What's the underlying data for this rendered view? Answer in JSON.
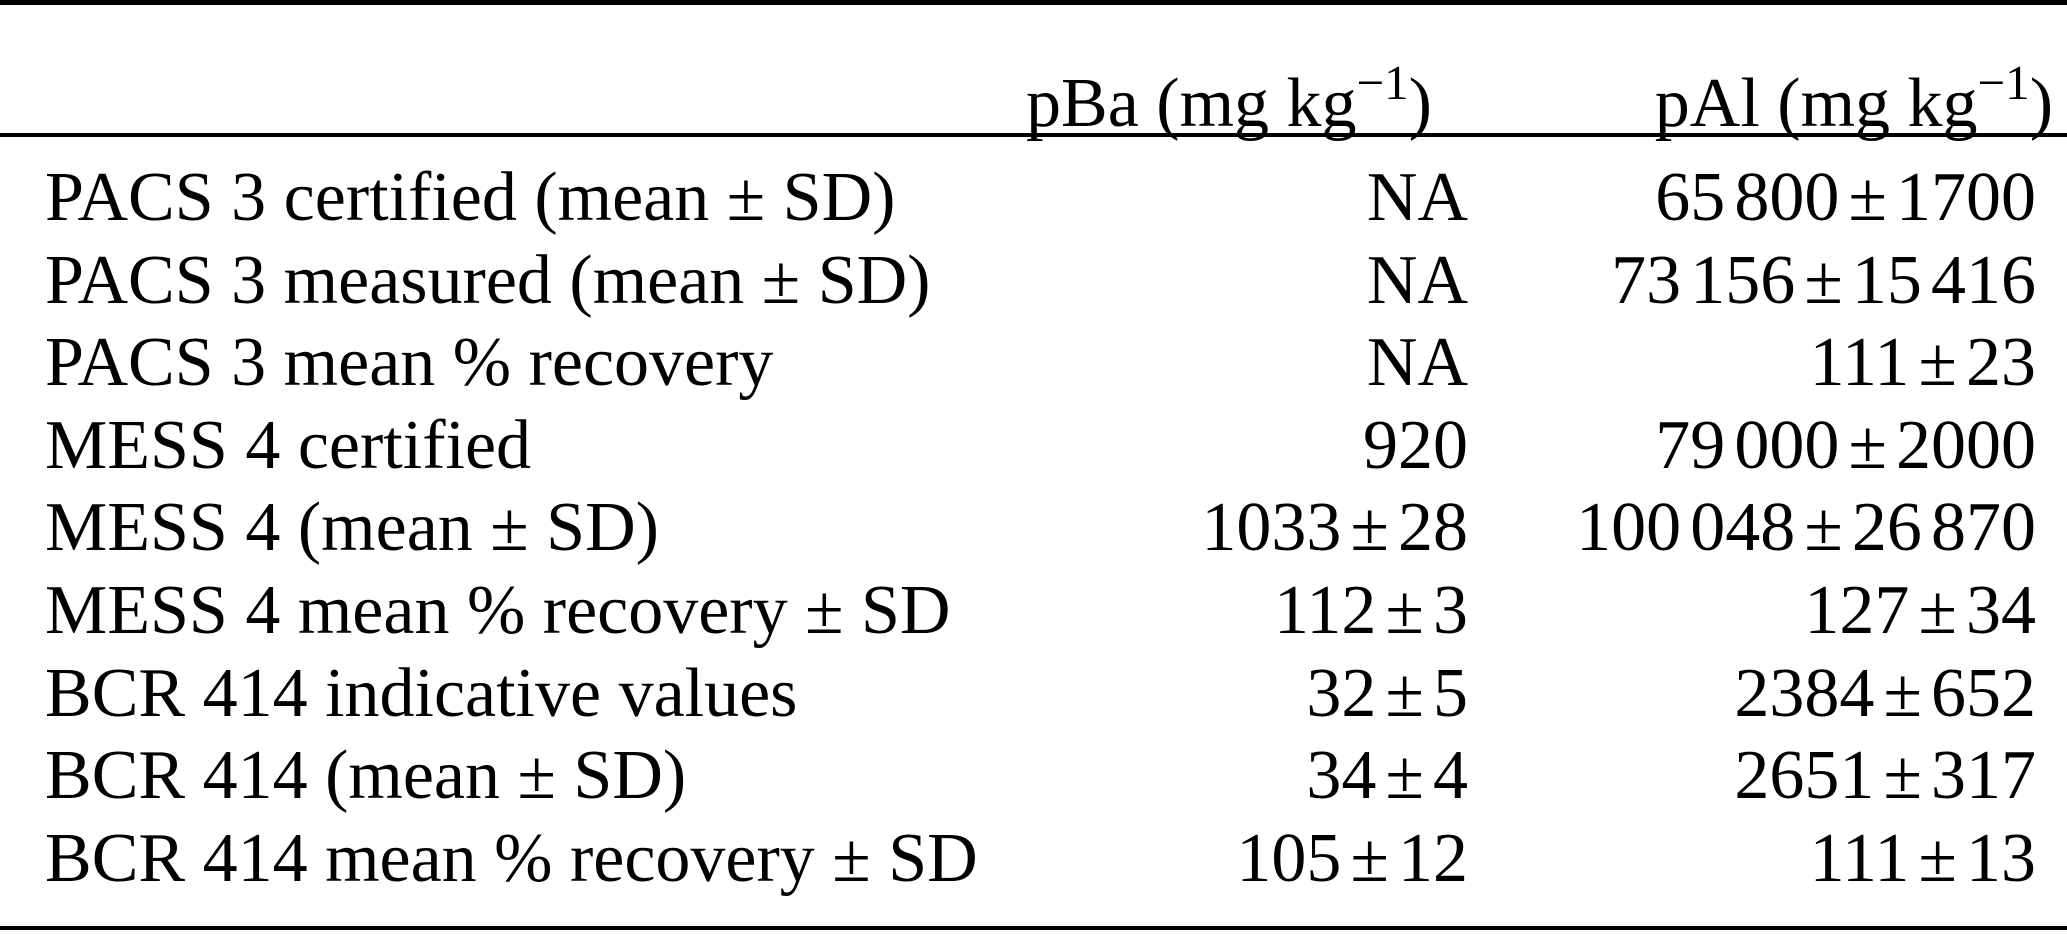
{
  "table": {
    "colors": {
      "text": "#000000",
      "background": "#ffffff",
      "rule": "#000000"
    },
    "header": {
      "label_column": "",
      "pba": {
        "prefix": "pBa (mg kg",
        "sup": "−1",
        "suffix": ")"
      },
      "pal": {
        "prefix": "pAl (mg kg",
        "sup": "−1",
        "suffix": ")"
      }
    },
    "rows": [
      {
        "label": "PACS 3 certified (mean ± SD)",
        "pba": "NA",
        "pal": "65 800 ± 1700"
      },
      {
        "label": "PACS 3 measured (mean ± SD)",
        "pba": "NA",
        "pal": "73 156 ± 15 416"
      },
      {
        "label": "PACS 3 mean % recovery",
        "pba": "NA",
        "pal": "111 ± 23"
      },
      {
        "label": "MESS 4 certified",
        "pba": "920",
        "pal": "79 000 ± 2000"
      },
      {
        "label": "MESS 4 (mean ± SD)",
        "pba": "1033 ± 28",
        "pal": "100 048 ± 26 870"
      },
      {
        "label": "MESS 4 mean % recovery ± SD",
        "pba": "112 ± 3",
        "pal": "127 ± 34"
      },
      {
        "label": "BCR 414 indicative values",
        "pba": "32 ± 5",
        "pal": "2384 ± 652"
      },
      {
        "label": "BCR 414 (mean ± SD)",
        "pba": "34 ± 4",
        "pal": "2651 ± 317"
      },
      {
        "label": "BCR 414 mean % recovery ± SD",
        "pba": "105 ± 12",
        "pal": "111 ± 13"
      }
    ]
  }
}
